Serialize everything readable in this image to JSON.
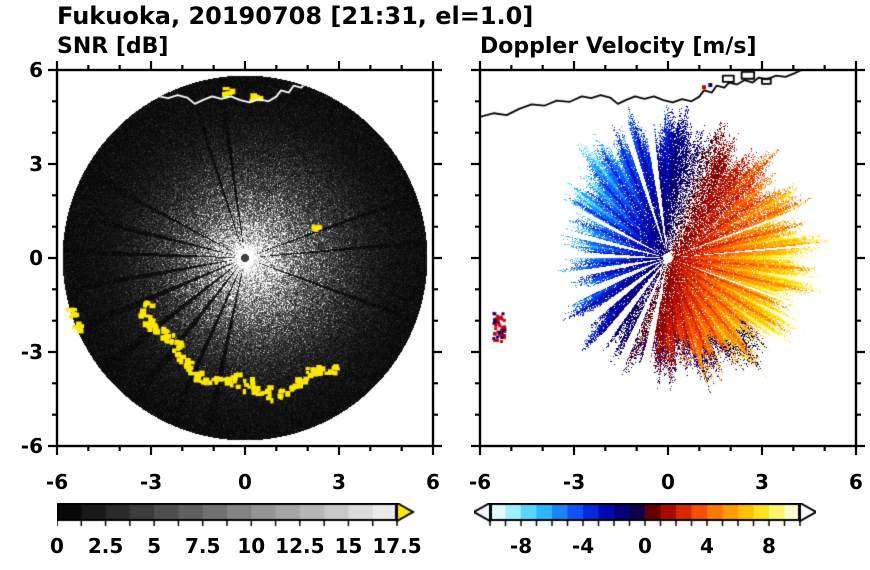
{
  "title": "Fukuoka, 20190708 [21:31, el=1.0]",
  "panels": [
    {
      "id": "snr",
      "title": "SNR [dB]",
      "axis": {
        "xlim": [
          -6,
          6
        ],
        "ylim": [
          -6,
          6
        ],
        "major_ticks": [
          -6,
          -3,
          0,
          3,
          6
        ],
        "x_tick_labels": [
          "-6",
          "-3",
          "0",
          "3",
          "6"
        ],
        "y_tick_values": [
          6,
          3,
          0,
          -3,
          -6
        ],
        "y_tick_labels": [
          "6",
          "3",
          "0",
          "-3",
          "-6"
        ],
        "minor_tick_step": 1,
        "show_y_labels": true
      },
      "colorbar": {
        "range": [
          0,
          17.5
        ],
        "segment_step": 1.25,
        "tick_values": [
          0,
          2.5,
          5,
          7.5,
          10,
          12.5,
          15,
          17.5
        ],
        "tick_labels": [
          "0",
          "2.5",
          "5",
          "7.5",
          "10",
          "12.5",
          "15",
          "17.5"
        ],
        "type": "grayscale",
        "start_gray": 8,
        "end_gray": 235,
        "over_arrow_color": "#ffe800",
        "arrows": "right"
      }
    },
    {
      "id": "velocity",
      "title": "Doppler Velocity [m/s]",
      "axis": {
        "xlim": [
          -6,
          6
        ],
        "ylim": [
          -6,
          6
        ],
        "major_ticks": [
          -6,
          -3,
          0,
          3,
          6
        ],
        "x_tick_labels": [
          "-6",
          "-3",
          "0",
          "3",
          "6"
        ],
        "y_tick_values": [
          6,
          3,
          0,
          -3,
          -6
        ],
        "y_tick_labels": [
          "6",
          "3",
          "0",
          "-3",
          "-6"
        ],
        "minor_tick_step": 1,
        "show_y_labels": false
      },
      "colorbar": {
        "range": [
          -10,
          10
        ],
        "segment_step": 1,
        "tick_values": [
          -8,
          -4,
          0,
          4,
          8
        ],
        "tick_labels": [
          "-8",
          "-4",
          "0",
          "4",
          "8"
        ],
        "type": "velocity",
        "left_arrow_color": "#f2fdff",
        "right_arrow_color": "#ffffff",
        "arrows": "both"
      }
    }
  ],
  "coastline": {
    "points": [
      [
        -6,
        4.5
      ],
      [
        -5.55,
        4.62
      ],
      [
        -5.15,
        4.56
      ],
      [
        -4.75,
        4.76
      ],
      [
        -4.35,
        4.9
      ],
      [
        -3.95,
        4.86
      ],
      [
        -3.55,
        5.02
      ],
      [
        -3.15,
        4.98
      ],
      [
        -2.75,
        5.16
      ],
      [
        -2.45,
        5.1
      ],
      [
        -2.15,
        5.2
      ],
      [
        -1.85,
        5.12
      ],
      [
        -1.6,
        4.92
      ],
      [
        -1.35,
        5.04
      ],
      [
        -1.05,
        5.16
      ],
      [
        -0.75,
        5.08
      ],
      [
        -0.45,
        5.16
      ],
      [
        -0.15,
        5.04
      ],
      [
        0.15,
        4.97
      ],
      [
        0.45,
        5.07
      ],
      [
        0.75,
        5.0
      ],
      [
        1.0,
        5.15
      ],
      [
        1.15,
        5.35
      ],
      [
        1.4,
        5.28
      ],
      [
        1.55,
        5.5
      ],
      [
        1.8,
        5.44
      ],
      [
        1.95,
        5.6
      ],
      [
        2.2,
        5.54
      ],
      [
        2.45,
        5.68
      ],
      [
        2.7,
        5.6
      ],
      [
        2.9,
        5.76
      ],
      [
        3.15,
        5.7
      ],
      [
        3.45,
        5.82
      ],
      [
        3.75,
        5.78
      ],
      [
        4.05,
        5.9
      ],
      [
        4.35,
        6.05
      ]
    ],
    "harbor_rects": [
      [
        1.75,
        5.62,
        0.35,
        0.2
      ],
      [
        2.35,
        5.72,
        0.4,
        0.22
      ],
      [
        3.0,
        5.56,
        0.28,
        0.16
      ]
    ],
    "left_panel_color": "#ffffff",
    "right_panel_color": "#000000",
    "right_panel_specks": [
      [
        1.15,
        5.45,
        "#c80000"
      ],
      [
        1.35,
        5.52,
        "#000078"
      ]
    ]
  },
  "chart_data": [
    {
      "type": "heatmap",
      "panel": "SNR [dB]",
      "xlim": [
        -6,
        6
      ],
      "ylim": [
        -6,
        6
      ],
      "xticks": [
        -6,
        -3,
        0,
        3,
        6
      ],
      "yticks": [
        -6,
        -3,
        0,
        3,
        6
      ],
      "colorbar": {
        "range": [
          0,
          17.5
        ],
        "label_values": [
          0,
          2.5,
          5,
          7.5,
          10,
          12.5,
          15,
          17.5
        ],
        "colormap": "black-to-white grayscale, over-range yellow arrow"
      },
      "scan_radius": 5.82,
      "center_glare_radius": 0.5,
      "beam_blockage_azimuths_deg": [
        [
          5,
          0.7
        ],
        [
          20,
          0.8
        ],
        [
          98,
          1.0
        ],
        [
          108,
          0.8
        ],
        [
          152,
          0.8
        ],
        [
          166,
          1.0
        ],
        [
          178,
          1.0
        ],
        [
          190,
          1.2
        ],
        [
          203,
          1.5
        ],
        [
          218,
          1.5
        ],
        [
          232,
          1.5
        ],
        [
          246,
          1.2
        ],
        [
          258,
          1.2
        ],
        [
          340,
          0.8
        ]
      ],
      "clutter_arc": {
        "azimuth_deg": [
          205,
          310
        ],
        "radius": [
          3.45,
          4.55
        ],
        "color": "over-range yellow"
      },
      "isolated_echoes": [
        [
          2.25,
          0.95
        ],
        [
          -5.55,
          -1.75
        ],
        [
          -5.35,
          -2.2
        ],
        [
          -0.55,
          5.28
        ],
        [
          0.3,
          5.15
        ]
      ]
    },
    {
      "type": "heatmap",
      "panel": "Doppler Velocity [m/s]",
      "xlim": [
        -6,
        6
      ],
      "ylim": [
        -6,
        6
      ],
      "xticks": [
        -6,
        -3,
        0,
        3,
        6
      ],
      "yticks": [
        -6,
        -3,
        0,
        3,
        6
      ],
      "colorbar": {
        "range": [
          -10,
          10
        ],
        "label_values": [
          -8,
          -4,
          0,
          4,
          8
        ]
      },
      "colormap": {
        "kind": "velocity",
        "range": [
          -10,
          10
        ],
        "stops": [
          [
            -10,
            "#ffffff"
          ],
          [
            -9,
            "#c8f8ff"
          ],
          [
            -8,
            "#78e6ff"
          ],
          [
            -7,
            "#3cc8ff"
          ],
          [
            -6,
            "#1ea0ff"
          ],
          [
            -5,
            "#1468ff"
          ],
          [
            -4,
            "#0a3cf0"
          ],
          [
            -3,
            "#0014c8"
          ],
          [
            -2,
            "#000096"
          ],
          [
            -1,
            "#0a0064"
          ],
          [
            -0.05,
            "#14003c"
          ],
          [
            0.05,
            "#3c0000"
          ],
          [
            1,
            "#8c0000"
          ],
          [
            2,
            "#c81400"
          ],
          [
            3,
            "#eb3c00"
          ],
          [
            4,
            "#ff6400"
          ],
          [
            5,
            "#ff8c00"
          ],
          [
            6,
            "#ffaf00"
          ],
          [
            7,
            "#ffd200"
          ],
          [
            8,
            "#fff03c"
          ],
          [
            9,
            "#fffca0"
          ],
          [
            10,
            "#ffffff"
          ]
        ]
      },
      "flow_direction_deg": -20,
      "speed_profile": "U(r) = 1.2 + 1.6*r",
      "echo_edge_radius_by_azimuth": [
        [
          0,
          4.3
        ],
        [
          30,
          4.1
        ],
        [
          60,
          3.9
        ],
        [
          90,
          4.15
        ],
        [
          120,
          4.0
        ],
        [
          150,
          3.2
        ],
        [
          180,
          2.7
        ],
        [
          210,
          3.1
        ],
        [
          240,
          3.3
        ],
        [
          270,
          3.3
        ],
        [
          300,
          3.8
        ],
        [
          330,
          4.1
        ],
        [
          360,
          4.3
        ]
      ],
      "aliasing_rim_azimuth_deg": [
        250,
        320
      ],
      "isolated_echo": [
        -5.4,
        -2.2
      ],
      "center_hole_radius": 0.16
    }
  ]
}
